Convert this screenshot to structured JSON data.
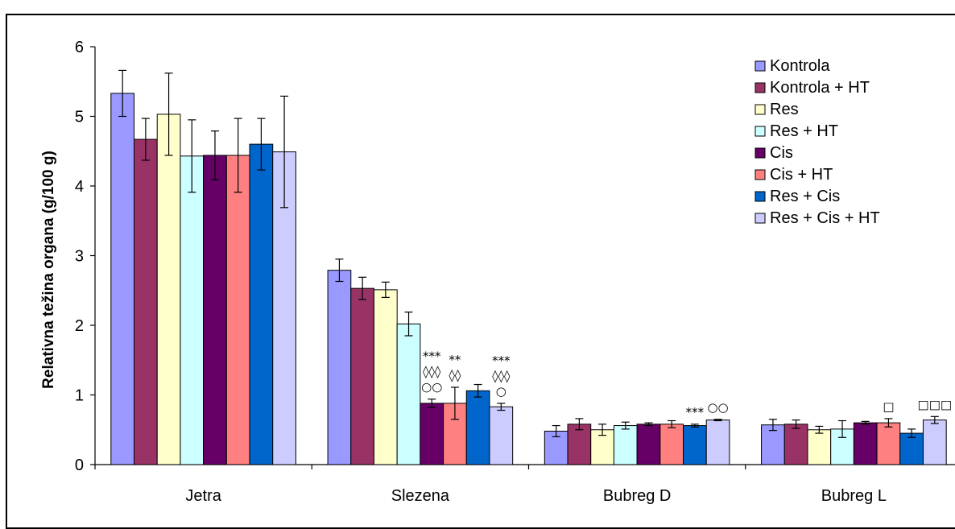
{
  "chart_data": {
    "type": "bar",
    "ylabel": "Relativna težina organa (g/100 g)",
    "xlabel": "",
    "ylim": [
      0,
      6
    ],
    "yticks": [
      0,
      1,
      2,
      3,
      4,
      5,
      6
    ],
    "grid": false,
    "legend_position": "top-right",
    "categories": [
      "Jetra",
      "Slezena",
      "Bubreg D",
      "Bubreg L"
    ],
    "series": [
      {
        "name": "Kontrola",
        "color": "#9999ff",
        "values": [
          5.33,
          2.79,
          0.48,
          0.57
        ],
        "errors": [
          0.33,
          0.16,
          0.08,
          0.08
        ]
      },
      {
        "name": "Kontrola + HT",
        "color": "#993366",
        "values": [
          4.67,
          2.53,
          0.58,
          0.58
        ],
        "errors": [
          0.3,
          0.16,
          0.08,
          0.06
        ]
      },
      {
        "name": "Res",
        "color": "#ffffcc",
        "values": [
          5.03,
          2.51,
          0.5,
          0.5
        ],
        "errors": [
          0.59,
          0.11,
          0.08,
          0.05
        ]
      },
      {
        "name": "Res + HT",
        "color": "#ccffff",
        "values": [
          4.43,
          2.02,
          0.56,
          0.51
        ],
        "errors": [
          0.52,
          0.17,
          0.05,
          0.12
        ]
      },
      {
        "name": "Cis",
        "color": "#660066",
        "values": [
          4.44,
          0.88,
          0.58,
          0.6
        ],
        "errors": [
          0.35,
          0.06,
          0.02,
          0.02
        ]
      },
      {
        "name": "Cis + HT",
        "color": "#ff8080",
        "values": [
          4.44,
          0.88,
          0.58,
          0.6
        ],
        "errors": [
          0.53,
          0.23,
          0.05,
          0.06
        ]
      },
      {
        "name": "Res + Cis",
        "color": "#0066cc",
        "values": [
          4.6,
          1.06,
          0.56,
          0.45
        ],
        "errors": [
          0.37,
          0.09,
          0.02,
          0.06
        ]
      },
      {
        "name": "Res + Cis + HT",
        "color": "#ccccff",
        "values": [
          4.49,
          0.83,
          0.64,
          0.64
        ],
        "errors": [
          0.8,
          0.05,
          0.01,
          0.05
        ]
      }
    ],
    "annotations": [
      {
        "category": "Slezena",
        "series": "Cis",
        "lines": [
          "***",
          "◊◊◊",
          "○○"
        ]
      },
      {
        "category": "Slezena",
        "series": "Cis + HT",
        "lines": [
          "**",
          "◊◊"
        ]
      },
      {
        "category": "Slezena",
        "series": "Res + Cis + HT",
        "lines": [
          "***",
          "◊◊◊",
          "○"
        ]
      },
      {
        "category": "Bubreg D",
        "series": "Res + Cis",
        "lines": [
          "***"
        ]
      },
      {
        "category": "Bubreg D",
        "series": "Res + Cis + HT",
        "lines": [
          "○○"
        ]
      },
      {
        "category": "Bubreg L",
        "series": "Cis + HT",
        "lines": [
          "□"
        ]
      },
      {
        "category": "Bubreg L",
        "series": "Res + Cis + HT",
        "lines": [
          "□□□"
        ]
      }
    ]
  }
}
